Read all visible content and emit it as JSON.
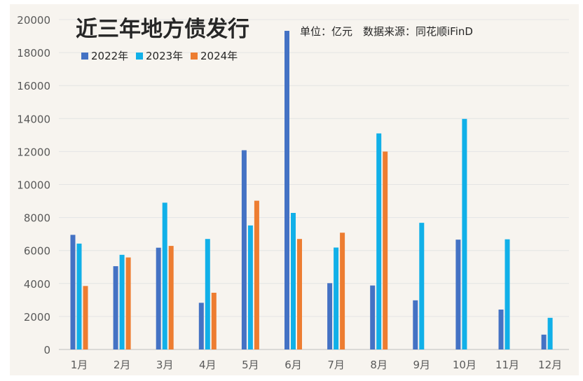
{
  "chart_data": {
    "type": "bar",
    "title": "近三年地方债发行",
    "subtitle": "单位：亿元　数据来源：同花顺iFinD",
    "xlabel": "",
    "ylabel": "",
    "ylim": [
      0,
      20000
    ],
    "yticks": [
      "0",
      "2000",
      "4000",
      "6000",
      "8000",
      "10000",
      "12000",
      "14000",
      "16000",
      "18000",
      "20000"
    ],
    "grid": true,
    "legend_position": "top-left",
    "categories": [
      "1月",
      "2月",
      "3月",
      "4月",
      "5月",
      "6月",
      "7月",
      "8月",
      "9月",
      "10月",
      "11月",
      "12月"
    ],
    "series": [
      {
        "name": "2022年",
        "color": "#4472C4",
        "values": [
          6950,
          5050,
          6170,
          2830,
          12080,
          19320,
          4020,
          3880,
          2980,
          6660,
          2420,
          900
        ]
      },
      {
        "name": "2023年",
        "color": "#11B0E8",
        "values": [
          6420,
          5740,
          8900,
          6700,
          7520,
          8280,
          6180,
          13100,
          7680,
          13980,
          6680,
          1920
        ]
      },
      {
        "name": "2024年",
        "color": "#ED7D31",
        "values": [
          3850,
          5580,
          6280,
          3440,
          9020,
          6700,
          7080,
          12000,
          null,
          null,
          null,
          null
        ]
      }
    ]
  },
  "colors": {
    "background": "#F7F4EF",
    "grid": "#E4E4E4",
    "axis": "#BFBFBF",
    "text": "#595959",
    "title": "#262626"
  }
}
